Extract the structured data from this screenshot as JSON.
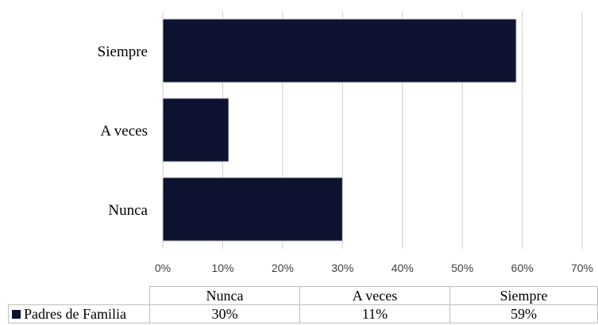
{
  "chart_data": {
    "type": "bar",
    "orientation": "horizontal",
    "categories": [
      "Siempre",
      "A veces",
      "Nunca"
    ],
    "series": [
      {
        "name": "Padres de Familia",
        "values": [
          59,
          11,
          30
        ],
        "color": "#0c1230"
      }
    ],
    "xlim": [
      0,
      70
    ],
    "x_ticks": [
      "0%",
      "10%",
      "20%",
      "30%",
      "40%",
      "50%",
      "60%",
      "70%"
    ],
    "grid": true,
    "legend": "data-table-below",
    "table": {
      "columns": [
        "Nunca",
        "A veces",
        "Siempre"
      ],
      "rows": [
        {
          "series": "Padres de Familia",
          "values": [
            "30%",
            "11%",
            "59%"
          ]
        }
      ]
    }
  }
}
